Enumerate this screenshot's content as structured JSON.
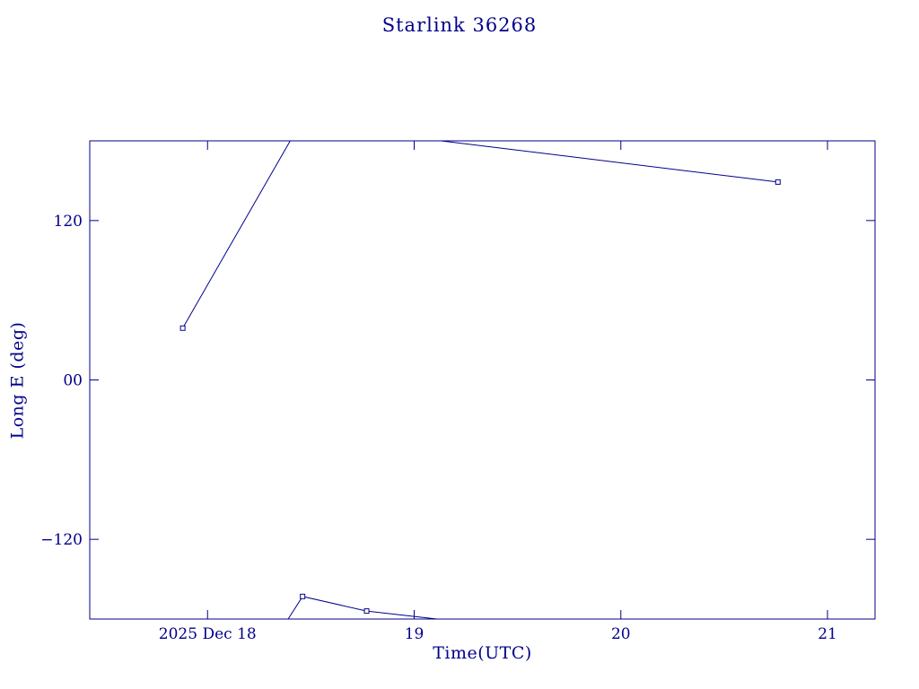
{
  "page": {
    "background": "#ffffff",
    "accent_color": "#00008b"
  },
  "chart_data": {
    "type": "line",
    "title": "Starlink 36268",
    "xlabel": "Time(UTC)",
    "ylabel": "Long E (deg)",
    "x_unit": "hours UTC on 2025 Dec 18",
    "y_unit": "degrees east longitude",
    "xlim": [
      17.43,
      21.23
    ],
    "ylim": [
      -180,
      180
    ],
    "grid": false,
    "legend": null,
    "x_ticks": [
      {
        "value": 18,
        "label": "2025 Dec 18"
      },
      {
        "value": 19,
        "label": "19"
      },
      {
        "value": 20,
        "label": "20"
      },
      {
        "value": 21,
        "label": "21"
      }
    ],
    "y_ticks": [
      {
        "value": 120,
        "label": "120"
      },
      {
        "value": 0,
        "label": "00"
      },
      {
        "value": -120,
        "label": "−120"
      }
    ],
    "series": [
      {
        "name": "longitude-track",
        "color": "#00008b",
        "segments": [
          {
            "points": [
              [
                17.88,
                39
              ],
              [
                18.4,
                180
              ]
            ]
          },
          {
            "points": [
              [
                19.13,
                180
              ],
              [
                20.76,
                149
              ]
            ]
          },
          {
            "points": [
              [
                18.39,
                -180
              ],
              [
                18.46,
                -163
              ],
              [
                18.77,
                -174
              ],
              [
                19.11,
                -180
              ]
            ]
          }
        ],
        "markers": [
          [
            17.88,
            39
          ],
          [
            20.76,
            149
          ],
          [
            18.46,
            -163
          ],
          [
            18.77,
            -174
          ]
        ]
      }
    ]
  }
}
